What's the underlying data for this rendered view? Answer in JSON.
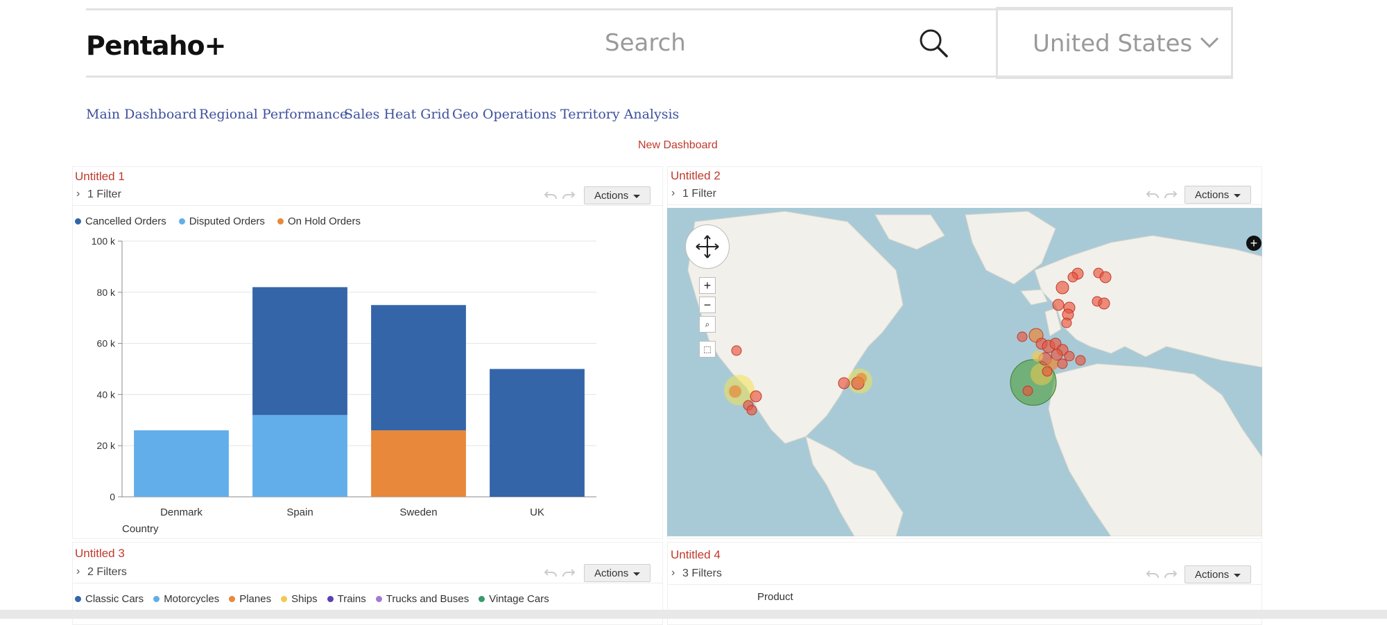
{
  "header": {
    "logo": "Pentaho+",
    "search_placeholder": "Search",
    "country_selected": "United States"
  },
  "nav": {
    "links": [
      "Main Dashboard",
      "Regional Performance",
      "Sales Heat Grid",
      "Geo Operations",
      "Territory Analysis"
    ],
    "new_dashboard": "New Dashboard"
  },
  "panels": [
    {
      "title": "Untitled 1",
      "filters": "1 Filter",
      "actions": "Actions"
    },
    {
      "title": "Untitled 2",
      "filters": "1 Filter",
      "actions": "Actions"
    },
    {
      "title": "Untitled 3",
      "filters": "2 Filters",
      "actions": "Actions"
    },
    {
      "title": "Untitled 4",
      "filters": "3 Filters",
      "actions": "Actions"
    }
  ],
  "panel3_legend": [
    {
      "label": "Classic Cars",
      "color": "#3465a9"
    },
    {
      "label": "Motorcycles",
      "color": "#5faee8"
    },
    {
      "label": "Planes",
      "color": "#e8883a"
    },
    {
      "label": "Ships",
      "color": "#f2c94c"
    },
    {
      "label": "Trains",
      "color": "#5b3fb5"
    },
    {
      "label": "Trucks and Buses",
      "color": "#a07ad6"
    },
    {
      "label": "Vintage Cars",
      "color": "#3a9a6a"
    }
  ],
  "panel4_axis_label": "Product",
  "chart_data": {
    "type": "bar",
    "stacked": true,
    "categories": [
      "Denmark",
      "Spain",
      "Sweden",
      "UK"
    ],
    "series": [
      {
        "name": "Cancelled Orders",
        "color": "#3465a9",
        "values": [
          0,
          50000,
          49000,
          50000
        ]
      },
      {
        "name": "Disputed Orders",
        "color": "#62aeea",
        "values": [
          26000,
          32000,
          0,
          0
        ]
      },
      {
        "name": "On Hold Orders",
        "color": "#e8883a",
        "values": [
          0,
          0,
          26000,
          0
        ]
      }
    ],
    "ylim": [
      0,
      100000
    ],
    "yticks": [
      "0",
      "20 k",
      "40 k",
      "60 k",
      "80 k",
      "100 k"
    ],
    "xlabel": "Country",
    "ylabel": "",
    "grid": true,
    "legend": "top-left"
  }
}
